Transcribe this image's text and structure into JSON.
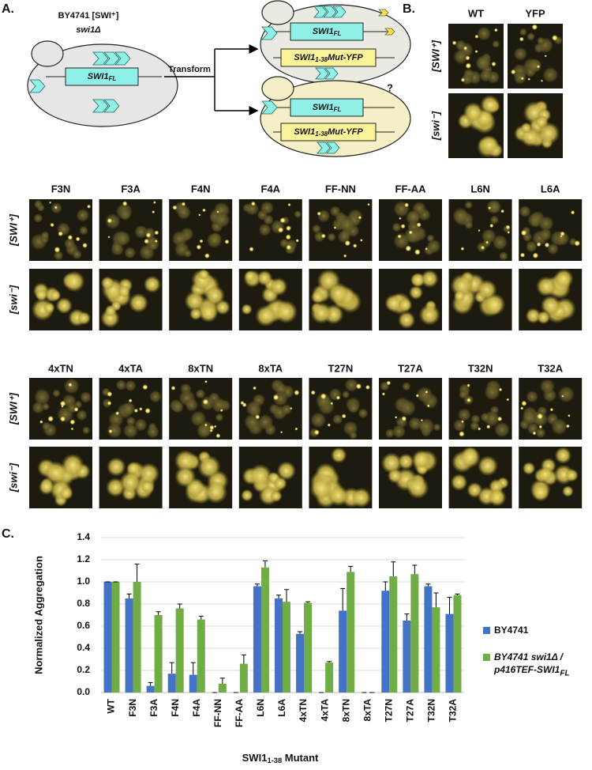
{
  "panel_a": {
    "label": "A.",
    "strain": "BY4741 [SWI⁺]",
    "deletion": "swi1Δ",
    "plasmid": {
      "main": "SWI1",
      "sub": "FL"
    },
    "mutant": {
      "main": "SWI1",
      "sub": "1-38",
      "rest": "Mut-YFP"
    },
    "arrow_label": "Transform",
    "question": "?"
  },
  "panel_b": {
    "label": "B.",
    "columns": [
      "WT",
      "YFP"
    ],
    "rows": [
      "[SWI⁺]",
      "[swi⁻]"
    ]
  },
  "image_grids": [
    {
      "columns": [
        "F3N",
        "F3A",
        "F4N",
        "F4A",
        "FF-NN",
        "FF-AA",
        "L6N",
        "L6A"
      ],
      "rows": [
        "[SWI⁺]",
        "[swi⁻]"
      ]
    },
    {
      "columns": [
        "4xTN",
        "4xTA",
        "8xTN",
        "8xTA",
        "T27N",
        "T27A",
        "T32N",
        "T32A"
      ],
      "rows": [
        "[SWI⁺]",
        "[swi⁻]"
      ]
    }
  ],
  "chart_data": {
    "type": "bar",
    "panel_label": "C.",
    "ylabel": "Normalized Aggregation",
    "xlabel": {
      "main": "SWI1",
      "sub": "1-38",
      "rest": " Mutant"
    },
    "categories": [
      "WT",
      "F3N",
      "F3A",
      "F4N",
      "F4A",
      "FF-NN",
      "FF-AA",
      "L6N",
      "L6A",
      "4xTN",
      "4xTA",
      "8xTN",
      "8xTA",
      "T27N",
      "T27A",
      "T32N",
      "T32A"
    ],
    "series": [
      {
        "name": {
          "main": "BY4741"
        },
        "color": "#4472c4",
        "values": [
          1.0,
          0.85,
          0.06,
          0.17,
          0.16,
          0,
          0,
          0.96,
          0.85,
          0.53,
          0,
          0.74,
          0,
          0.92,
          0.65,
          0.96,
          0.71
        ],
        "errors": [
          0,
          0.04,
          0.03,
          0.1,
          0.11,
          0,
          0,
          0.02,
          0.03,
          0.02,
          0,
          0.2,
          0,
          0.08,
          0.06,
          0.02,
          0.15
        ]
      },
      {
        "name": {
          "main": "BY4741 swi1Δ / p416TEF-SWI1",
          "sub": "FL"
        },
        "color": "#70ad47",
        "values": [
          1.0,
          1.0,
          0.7,
          0.76,
          0.66,
          0.08,
          0.26,
          1.13,
          0.82,
          0.81,
          0.27,
          1.09,
          0,
          1.05,
          1.07,
          0.77,
          0.88
        ],
        "errors": [
          0,
          0.16,
          0.03,
          0.04,
          0.03,
          0.05,
          0.08,
          0.06,
          0.11,
          0.01,
          0.01,
          0.05,
          0,
          0.13,
          0.08,
          0.13,
          0.01
        ]
      }
    ],
    "ylim": [
      0,
      1.4
    ],
    "yticks": [
      {
        "value": 0,
        "label": "0.0"
      },
      0.2,
      0.4,
      0.6,
      0.8,
      {
        "value": 1,
        "label": "1.0"
      },
      1.2,
      1.4
    ],
    "grid": true
  }
}
